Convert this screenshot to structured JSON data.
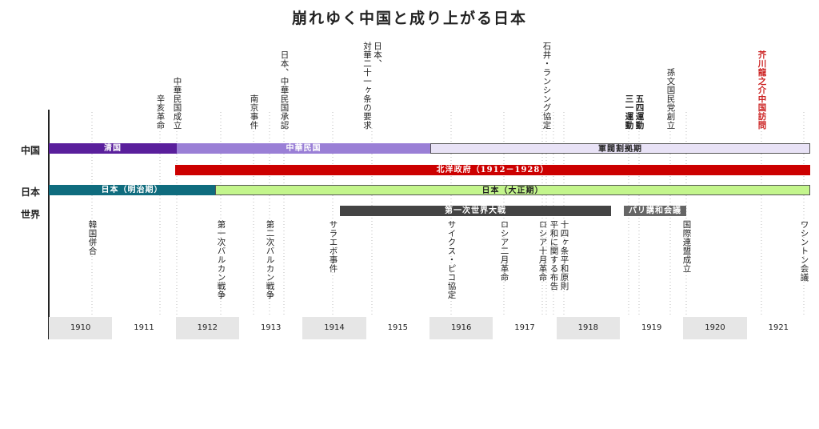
{
  "title": "崩れゆく中国と成り上がる日本",
  "rows": [
    "中国",
    "日本",
    "世界"
  ],
  "bars": [
    "清国",
    "中華民国",
    "軍閥割拠期",
    "北洋政府（1912－1928）",
    "日本（明治期）",
    "日本（大正期）",
    "第一次世界大戦",
    "パリ講和会議"
  ],
  "events_above": [
    "辛亥革命",
    "中華民国成立",
    "南京事件",
    "日本、中華民国承認",
    "日本、\n対華二十一ヶ条の要求",
    "石井・ランシング協定",
    "三一運動",
    "五四運動",
    "孫文国民党創立",
    "芥川龍之介中国訪問"
  ],
  "events_below": [
    "韓国併合",
    "第一次バルカン戦争",
    "第二次バルカン戦争",
    "サラエボ事件",
    "サイクス・ピコ協定",
    "ロシア二月革命",
    "ロシア十月革命",
    "平和に関する布告",
    "十四ヶ条平和原則",
    "国際連盟成立",
    "ワシントン会議"
  ],
  "years": [
    "1910",
    "1911",
    "1912",
    "1913",
    "1914",
    "1915",
    "1916",
    "1917",
    "1918",
    "1919",
    "1920",
    "1921"
  ]
}
